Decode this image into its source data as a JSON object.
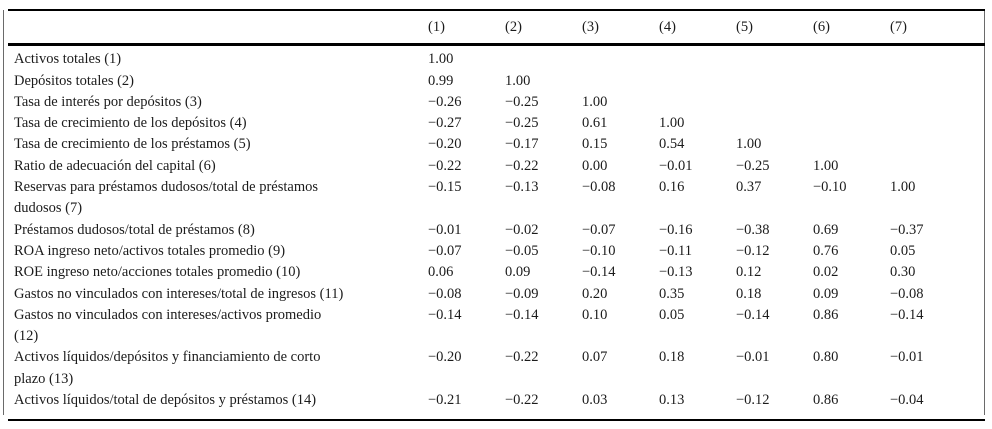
{
  "table": {
    "columns": [
      "(1)",
      "(2)",
      "(3)",
      "(4)",
      "(5)",
      "(6)",
      "(7)"
    ],
    "rows": [
      {
        "label": "Activos totales (1)",
        "values": [
          "1.00",
          "",
          "",
          "",
          "",
          "",
          ""
        ]
      },
      {
        "label": "Depósitos totales (2)",
        "values": [
          "0.99",
          "1.00",
          "",
          "",
          "",
          "",
          ""
        ]
      },
      {
        "label": "Tasa de interés por depósitos (3)",
        "values": [
          "−0.26",
          "−0.25",
          "1.00",
          "",
          "",
          "",
          ""
        ]
      },
      {
        "label": "Tasa de crecimiento de los depósitos (4)",
        "values": [
          "−0.27",
          "−0.25",
          "0.61",
          "1.00",
          "",
          "",
          ""
        ]
      },
      {
        "label": "Tasa de crecimiento de los préstamos (5)",
        "values": [
          "−0.20",
          "−0.17",
          "0.15",
          "0.54",
          "1.00",
          "",
          ""
        ]
      },
      {
        "label": "Ratio de adecuación del capital (6)",
        "values": [
          "−0.22",
          "−0.22",
          "0.00",
          "−0.01",
          "−0.25",
          "1.00",
          ""
        ]
      },
      {
        "label": "Reservas para préstamos dudosos/total de préstamos\ndudosos (7)",
        "values": [
          "−0.15",
          "−0.13",
          "−0.08",
          "0.16",
          "0.37",
          "−0.10",
          "1.00"
        ]
      },
      {
        "label": "Préstamos dudosos/total de préstamos (8)",
        "values": [
          "−0.01",
          "−0.02",
          "−0.07",
          "−0.16",
          "−0.38",
          "0.69",
          "−0.37"
        ]
      },
      {
        "label": "ROA ingreso neto/activos totales promedio (9)",
        "values": [
          "−0.07",
          "−0.05",
          "−0.10",
          "−0.11",
          "−0.12",
          "0.76",
          "0.05"
        ]
      },
      {
        "label": "ROE ingreso neto/acciones totales promedio (10)",
        "values": [
          "0.06",
          "0.09",
          "−0.14",
          "−0.13",
          "0.12",
          "0.02",
          "0.30"
        ]
      },
      {
        "label": "Gastos no vinculados con intereses/total de ingresos (11)",
        "values": [
          "−0.08",
          "−0.09",
          "0.20",
          "0.35",
          "0.18",
          "0.09",
          "−0.08"
        ]
      },
      {
        "label": "Gastos no vinculados con intereses/activos promedio\n(12)",
        "values": [
          "−0.14",
          "−0.14",
          "0.10",
          "0.05",
          "−0.14",
          "0.86",
          "−0.14"
        ]
      },
      {
        "label": "Activos líquidos/depósitos y financiamiento de corto\nplazo (13)",
        "values": [
          "−0.20",
          "−0.22",
          "0.07",
          "0.18",
          "−0.01",
          "0.80",
          "−0.01"
        ]
      },
      {
        "label": "Activos líquidos/total de depósitos y préstamos (14)",
        "values": [
          "−0.21",
          "−0.22",
          "0.03",
          "0.13",
          "−0.12",
          "0.86",
          "−0.04"
        ]
      }
    ]
  }
}
